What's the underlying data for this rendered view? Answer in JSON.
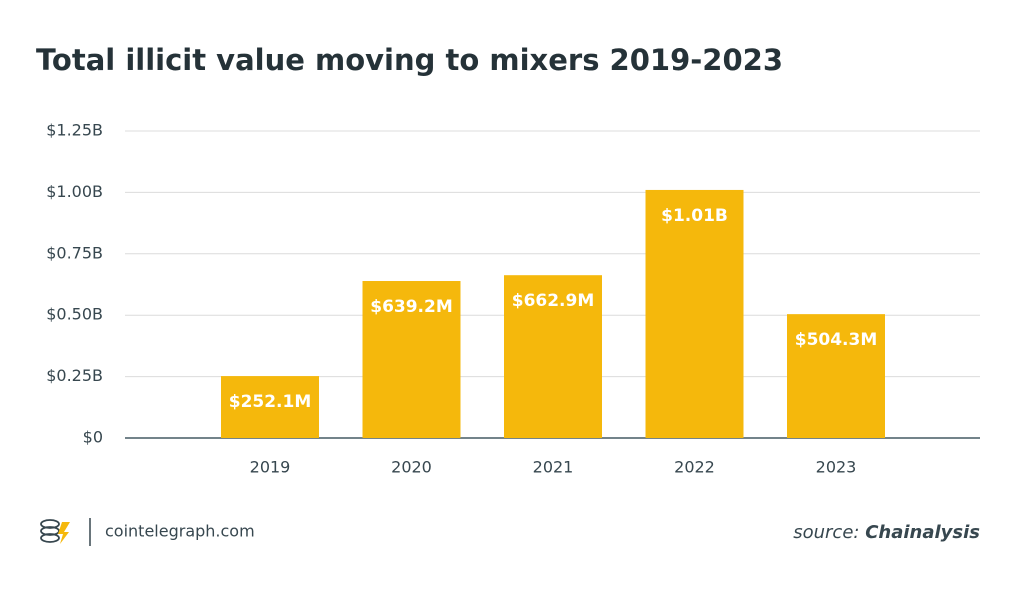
{
  "chart_data": {
    "type": "bar",
    "title": "Total illicit value moving to mixers 2019-2023",
    "categories": [
      "2019",
      "2020",
      "2021",
      "2022",
      "2023"
    ],
    "values": [
      252100000,
      639200000,
      662900000,
      1010000000,
      504300000
    ],
    "value_labels": [
      "$252.1M",
      "$639.2M",
      "$662.9M",
      "$1.01B",
      "$504.3M"
    ],
    "color": "#f5b80c",
    "ylim": [
      0,
      1250000000
    ],
    "yticks": [
      {
        "value": 0,
        "label": "$0"
      },
      {
        "value": 250000000,
        "label": "$0.25B"
      },
      {
        "value": 500000000,
        "label": "$0.50B"
      },
      {
        "value": 750000000,
        "label": "$0.75B"
      },
      {
        "value": 1000000000,
        "label": "$1.00B"
      },
      {
        "value": 1250000000,
        "label": "$1.25B"
      }
    ],
    "grid": true
  },
  "footer": {
    "site": "cointelegraph.com",
    "source_label": "source:",
    "source": "Chainalysis"
  }
}
